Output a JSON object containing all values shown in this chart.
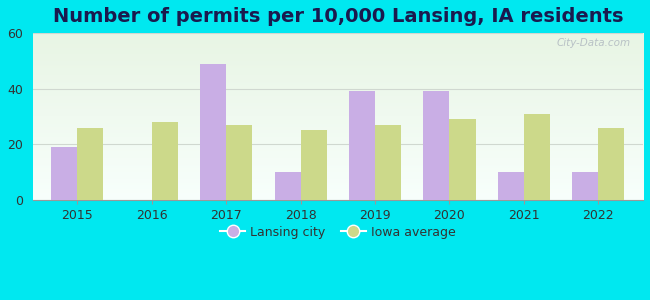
{
  "title": "Number of permits per 10,000 Lansing, IA residents",
  "years": [
    2015,
    2016,
    2017,
    2018,
    2019,
    2020,
    2021,
    2022
  ],
  "lansing_values": [
    19,
    0,
    49,
    10,
    39,
    39,
    10,
    10
  ],
  "iowa_values": [
    26,
    28,
    27,
    25,
    27,
    29,
    31,
    26
  ],
  "lansing_color": "#c9aee5",
  "iowa_color": "#ccd98a",
  "background_color": "#00e8f0",
  "ylim": [
    0,
    60
  ],
  "yticks": [
    0,
    20,
    40,
    60
  ],
  "title_fontsize": 14,
  "title_color": "#1a1a4e",
  "legend_label_lansing": "Lansing city",
  "legend_label_iowa": "Iowa average",
  "bar_width": 0.35,
  "watermark": "City-Data.com"
}
